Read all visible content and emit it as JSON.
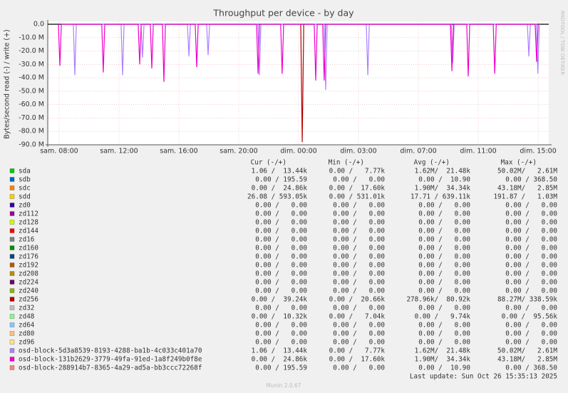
{
  "chart_data": {
    "type": "line",
    "title": "Throughput per device - by day",
    "ylabel": "Bytes/second read (-) / write (+)",
    "watermark": "RRDTOOL / TOBI OETIKER",
    "footer": "Last update: Sun Oct 26 15:35:13 2025",
    "version": "Munin 2.0.67",
    "columns": [
      "Cur (-/+)",
      "Min (-/+)",
      "Avg (-/+)",
      "Max (-/+)"
    ],
    "ylim": [
      -90,
      0
    ],
    "yticks": [
      {
        "value": 0,
        "label": "0.0"
      },
      {
        "value": -10,
        "label": "-10.0 M"
      },
      {
        "value": -20,
        "label": "-20.0 M"
      },
      {
        "value": -30,
        "label": "-30.0 M"
      },
      {
        "value": -40,
        "label": "-40.0 M"
      },
      {
        "value": -50,
        "label": "-50.0 M"
      },
      {
        "value": -60,
        "label": "-60.0 M"
      },
      {
        "value": -70,
        "label": "-70.0 M"
      },
      {
        "value": -80,
        "label": "-80.0 M"
      },
      {
        "value": -90,
        "label": "-90.0 M"
      }
    ],
    "xlim": [
      -0.76,
      32.71
    ],
    "xticks": [
      {
        "value": 0,
        "label": "sam. 08:00"
      },
      {
        "value": 4,
        "label": "sam. 12:00"
      },
      {
        "value": 8,
        "label": "sam. 16:00"
      },
      {
        "value": 12,
        "label": "sam. 20:00"
      },
      {
        "value": 16,
        "label": "dim. 00:00"
      },
      {
        "value": 20,
        "label": "dim. 03:00"
      },
      {
        "value": 24,
        "label": "dim. 07:00"
      },
      {
        "value": 28,
        "label": "dim. 11:00"
      },
      {
        "value": 32,
        "label": "dim. 15:00"
      }
    ],
    "grid": true,
    "series": [
      {
        "name": "sda",
        "color": "#00cc00",
        "cur": "1.06 /  13.44k",
        "min": "0.00 /   7.77k",
        "avg": "1.62M/  21.48k",
        "max": "50.02M/   2.61M"
      },
      {
        "name": "sdb",
        "color": "#0066b3",
        "cur": "0.00 / 195.59",
        "min": "0.00 /   0.00",
        "avg": "0.00 /  10.90",
        "max": "0.00 / 368.50"
      },
      {
        "name": "sdc",
        "color": "#ff8000",
        "cur": "0.00 /  24.86k",
        "min": "0.00 /  17.60k",
        "avg": "1.90M/  34.34k",
        "max": "43.18M/   2.85M"
      },
      {
        "name": "sdd",
        "color": "#ffcc00",
        "cur": "26.08 / 593.05k",
        "min": "0.00 / 531.01k",
        "avg": "17.71 / 639.11k",
        "max": "191.87 /   1.03M"
      },
      {
        "name": "zd0",
        "color": "#330099",
        "cur": "0.00 /   0.00",
        "min": "0.00 /   0.00",
        "avg": "0.00 /   0.00",
        "max": "0.00 /   0.00"
      },
      {
        "name": "zd112",
        "color": "#990099",
        "cur": "0.00 /   0.00",
        "min": "0.00 /   0.00",
        "avg": "0.00 /   0.00",
        "max": "0.00 /   0.00"
      },
      {
        "name": "zd128",
        "color": "#ccff00",
        "cur": "0.00 /   0.00",
        "min": "0.00 /   0.00",
        "avg": "0.00 /   0.00",
        "max": "0.00 /   0.00"
      },
      {
        "name": "zd144",
        "color": "#ff0000",
        "cur": "0.00 /   0.00",
        "min": "0.00 /   0.00",
        "avg": "0.00 /   0.00",
        "max": "0.00 /   0.00"
      },
      {
        "name": "zd16",
        "color": "#808080",
        "cur": "0.00 /   0.00",
        "min": "0.00 /   0.00",
        "avg": "0.00 /   0.00",
        "max": "0.00 /   0.00"
      },
      {
        "name": "zd160",
        "color": "#008f00",
        "cur": "0.00 /   0.00",
        "min": "0.00 /   0.00",
        "avg": "0.00 /   0.00",
        "max": "0.00 /   0.00"
      },
      {
        "name": "zd176",
        "color": "#00487d",
        "cur": "0.00 /   0.00",
        "min": "0.00 /   0.00",
        "avg": "0.00 /   0.00",
        "max": "0.00 /   0.00"
      },
      {
        "name": "zd192",
        "color": "#b35a00",
        "cur": "0.00 /   0.00",
        "min": "0.00 /   0.00",
        "avg": "0.00 /   0.00",
        "max": "0.00 /   0.00"
      },
      {
        "name": "zd208",
        "color": "#b38f00",
        "cur": "0.00 /   0.00",
        "min": "0.00 /   0.00",
        "avg": "0.00 /   0.00",
        "max": "0.00 /   0.00"
      },
      {
        "name": "zd224",
        "color": "#6b006b",
        "cur": "0.00 /   0.00",
        "min": "0.00 /   0.00",
        "avg": "0.00 /   0.00",
        "max": "0.00 /   0.00"
      },
      {
        "name": "zd240",
        "color": "#8fb300",
        "cur": "0.00 /   0.00",
        "min": "0.00 /   0.00",
        "avg": "0.00 /   0.00",
        "max": "0.00 /   0.00"
      },
      {
        "name": "zd256",
        "color": "#b30000",
        "cur": "0.00 /  39.24k",
        "min": "0.00 /  20.66k",
        "avg": "278.96k/  80.92k",
        "max": "88.27M/ 338.59k",
        "x": [
          16.14,
          16.24,
          16.34
        ],
        "values": [
          0,
          -88,
          0
        ]
      },
      {
        "name": "zd32",
        "color": "#bebebe",
        "cur": "0.00 /   0.00",
        "min": "0.00 /   0.00",
        "avg": "0.00 /   0.00",
        "max": "0.00 /   0.00"
      },
      {
        "name": "zd48",
        "color": "#80ff80",
        "cur": "0.00 /  10.32k",
        "min": "0.00 /   7.04k",
        "avg": "0.00 /   9.74k",
        "max": "0.00 /  95.56k"
      },
      {
        "name": "zd64",
        "color": "#80c9ff",
        "cur": "0.00 /   0.00",
        "min": "0.00 /   0.00",
        "avg": "0.00 /   0.00",
        "max": "0.00 /   0.00"
      },
      {
        "name": "zd80",
        "color": "#ffc080",
        "cur": "0.00 /   0.00",
        "min": "0.00 /   0.00",
        "avg": "0.00 /   0.00",
        "max": "0.00 /   0.00"
      },
      {
        "name": "zd96",
        "color": "#ffe680",
        "cur": "0.00 /   0.00",
        "min": "0.00 /   0.00",
        "avg": "0.00 /   0.00",
        "max": "0.00 /   0.00"
      },
      {
        "name": "osd-block-5d3a8539-8193-4288-ba1b-4c033c401a70",
        "color": "#aa80ff",
        "cur": "1.06 /  13.44k",
        "min": "0.00 /   7.77k",
        "avg": "1.62M/  21.48k",
        "max": "50.02M/   2.61M",
        "x": [
          0.95,
          1.05,
          1.15,
          4.14,
          4.24,
          4.34,
          5.47,
          5.57,
          5.67,
          8.57,
          8.67,
          8.77,
          9.85,
          9.95,
          10.05,
          13.28,
          13.38,
          13.48,
          17.71,
          17.81,
          17.91,
          20.52,
          20.62,
          20.72,
          26.19,
          26.29,
          26.39,
          31.28,
          31.38,
          31.48,
          31.88,
          31.98,
          32.08
        ],
        "values": [
          0,
          -38,
          0,
          0,
          -38,
          0,
          0,
          -25,
          0,
          0,
          -24,
          0,
          0,
          -23,
          0,
          0,
          -38,
          0,
          0,
          -49,
          0,
          0,
          -38,
          0,
          0,
          -29,
          0,
          0,
          -24,
          0,
          0,
          -37,
          0
        ]
      },
      {
        "name": "osd-block-131b2629-3779-49fa-91ed-1a8f249b0f8e",
        "color": "#ee00cc",
        "cur": "0.00 /  24.86k",
        "min": "0.00 /  17.60k",
        "avg": "1.90M/  34.34k",
        "max": "43.18M/   2.85M",
        "x": [
          -0.05,
          0.05,
          0.15,
          2.85,
          2.95,
          3.05,
          5.28,
          5.38,
          5.48,
          6.09,
          6.19,
          6.29,
          6.9,
          7.0,
          7.1,
          9.09,
          9.19,
          9.29,
          13.19,
          13.29,
          13.39,
          14.8,
          14.9,
          15.0,
          17.04,
          17.14,
          17.24,
          17.61,
          17.71,
          17.81,
          26.14,
          26.24,
          26.34,
          27.23,
          27.33,
          27.43,
          29.0,
          29.1,
          29.2,
          31.8,
          31.9,
          32.0
        ],
        "values": [
          0,
          -31,
          0,
          0,
          -36,
          0,
          0,
          -30,
          0,
          0,
          -33,
          0,
          0,
          -43,
          0,
          0,
          -32,
          0,
          0,
          -37,
          0,
          0,
          -37,
          0,
          0,
          -42,
          0,
          0,
          -42,
          0,
          0,
          -35,
          0,
          0,
          -39,
          0,
          0,
          -37,
          0,
          0,
          -28,
          0
        ]
      },
      {
        "name": "osd-block-288914b7-8365-4a29-ad5a-bb3ccc72268f",
        "color": "#ff8080",
        "cur": "0.00 / 195.59",
        "min": "0.00 /   0.00",
        "avg": "0.00 /  10.90",
        "max": "0.00 / 368.50"
      }
    ]
  }
}
